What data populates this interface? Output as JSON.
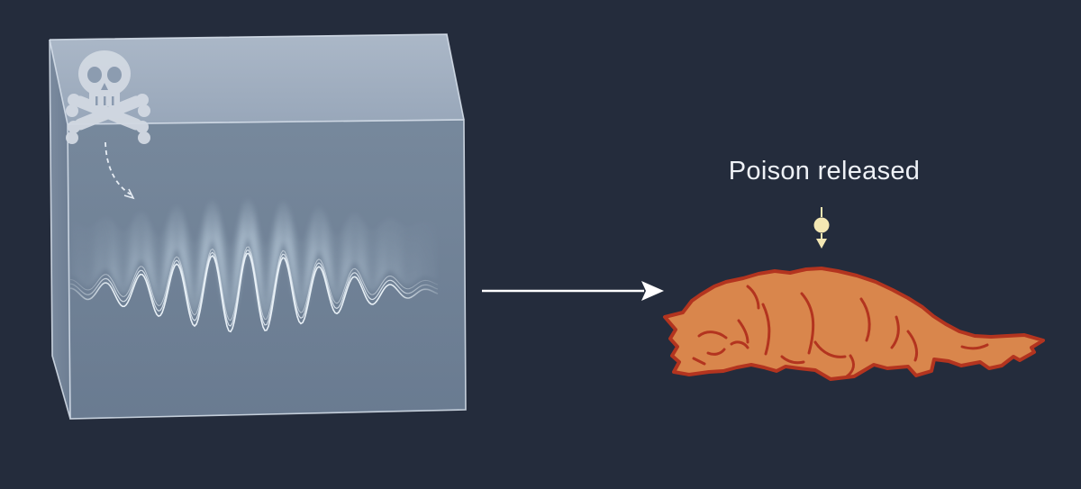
{
  "caption": {
    "text": "Poison released"
  },
  "colors": {
    "background": "#242c3c",
    "box_face": "#8093a7",
    "box_top": "#a8b6c8",
    "wave": "#e8f1f8",
    "cat_fill": "#d9864c",
    "cat_outline": "#b3341f",
    "poison_drop": "#f3e7b3",
    "arrow": "#ffffff"
  },
  "icons": [
    "skull-crossbones-icon",
    "dashed-arrow-icon",
    "arrow-right-icon",
    "poison-drop-icon",
    "cat-illustration"
  ]
}
